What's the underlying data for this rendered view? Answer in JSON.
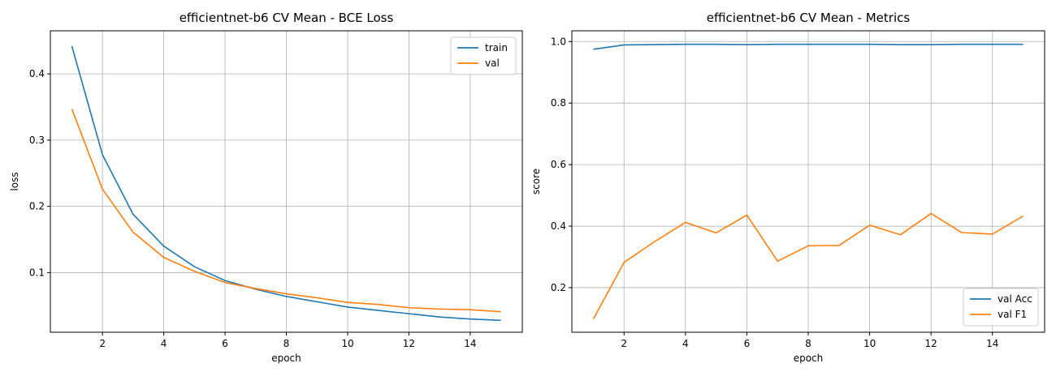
{
  "chart_data": [
    {
      "type": "line",
      "title": "efficientnet-b6 CV Mean - BCE Loss",
      "xlabel": "epoch",
      "ylabel": "loss",
      "grid": true,
      "legend": "top-right",
      "xlim": [
        0.3,
        15.7
      ],
      "ylim": [
        0.01,
        0.465
      ],
      "xticks": [
        2,
        4,
        6,
        8,
        10,
        12,
        14
      ],
      "yticks": [
        0.1,
        0.2,
        0.3,
        0.4
      ],
      "x": [
        1,
        2,
        3,
        4,
        5,
        6,
        7,
        8,
        9,
        10,
        11,
        12,
        13,
        14,
        15
      ],
      "series": [
        {
          "name": "train",
          "color": "#1f77b4",
          "values": [
            0.442,
            0.278,
            0.188,
            0.14,
            0.109,
            0.088,
            0.075,
            0.064,
            0.056,
            0.048,
            0.043,
            0.038,
            0.033,
            0.03,
            0.028
          ]
        },
        {
          "name": "val",
          "color": "#ff7f0e",
          "values": [
            0.347,
            0.226,
            0.161,
            0.123,
            0.102,
            0.085,
            0.076,
            0.068,
            0.062,
            0.055,
            0.052,
            0.047,
            0.045,
            0.044,
            0.041
          ]
        }
      ]
    },
    {
      "type": "line",
      "title": "efficientnet-b6 CV Mean - Metrics",
      "xlabel": "epoch",
      "ylabel": "score",
      "grid": true,
      "legend": "bottom-right",
      "xlim": [
        0.3,
        15.7
      ],
      "ylim": [
        0.055,
        1.035
      ],
      "xticks": [
        2,
        4,
        6,
        8,
        10,
        12,
        14
      ],
      "yticks": [
        0.2,
        0.4,
        0.6,
        0.8,
        1.0
      ],
      "x": [
        1,
        2,
        3,
        4,
        5,
        6,
        7,
        8,
        9,
        10,
        11,
        12,
        13,
        14,
        15
      ],
      "series": [
        {
          "name": "val Acc",
          "color": "#1f77b4",
          "values": [
            0.975,
            0.989,
            0.99,
            0.991,
            0.991,
            0.99,
            0.991,
            0.991,
            0.991,
            0.991,
            0.99,
            0.99,
            0.991,
            0.991,
            0.991
          ]
        },
        {
          "name": "val F1",
          "color": "#ff7f0e",
          "values": [
            0.098,
            0.282,
            0.35,
            0.412,
            0.378,
            0.436,
            0.286,
            0.336,
            0.337,
            0.403,
            0.372,
            0.441,
            0.379,
            0.374,
            0.433
          ]
        }
      ]
    }
  ]
}
